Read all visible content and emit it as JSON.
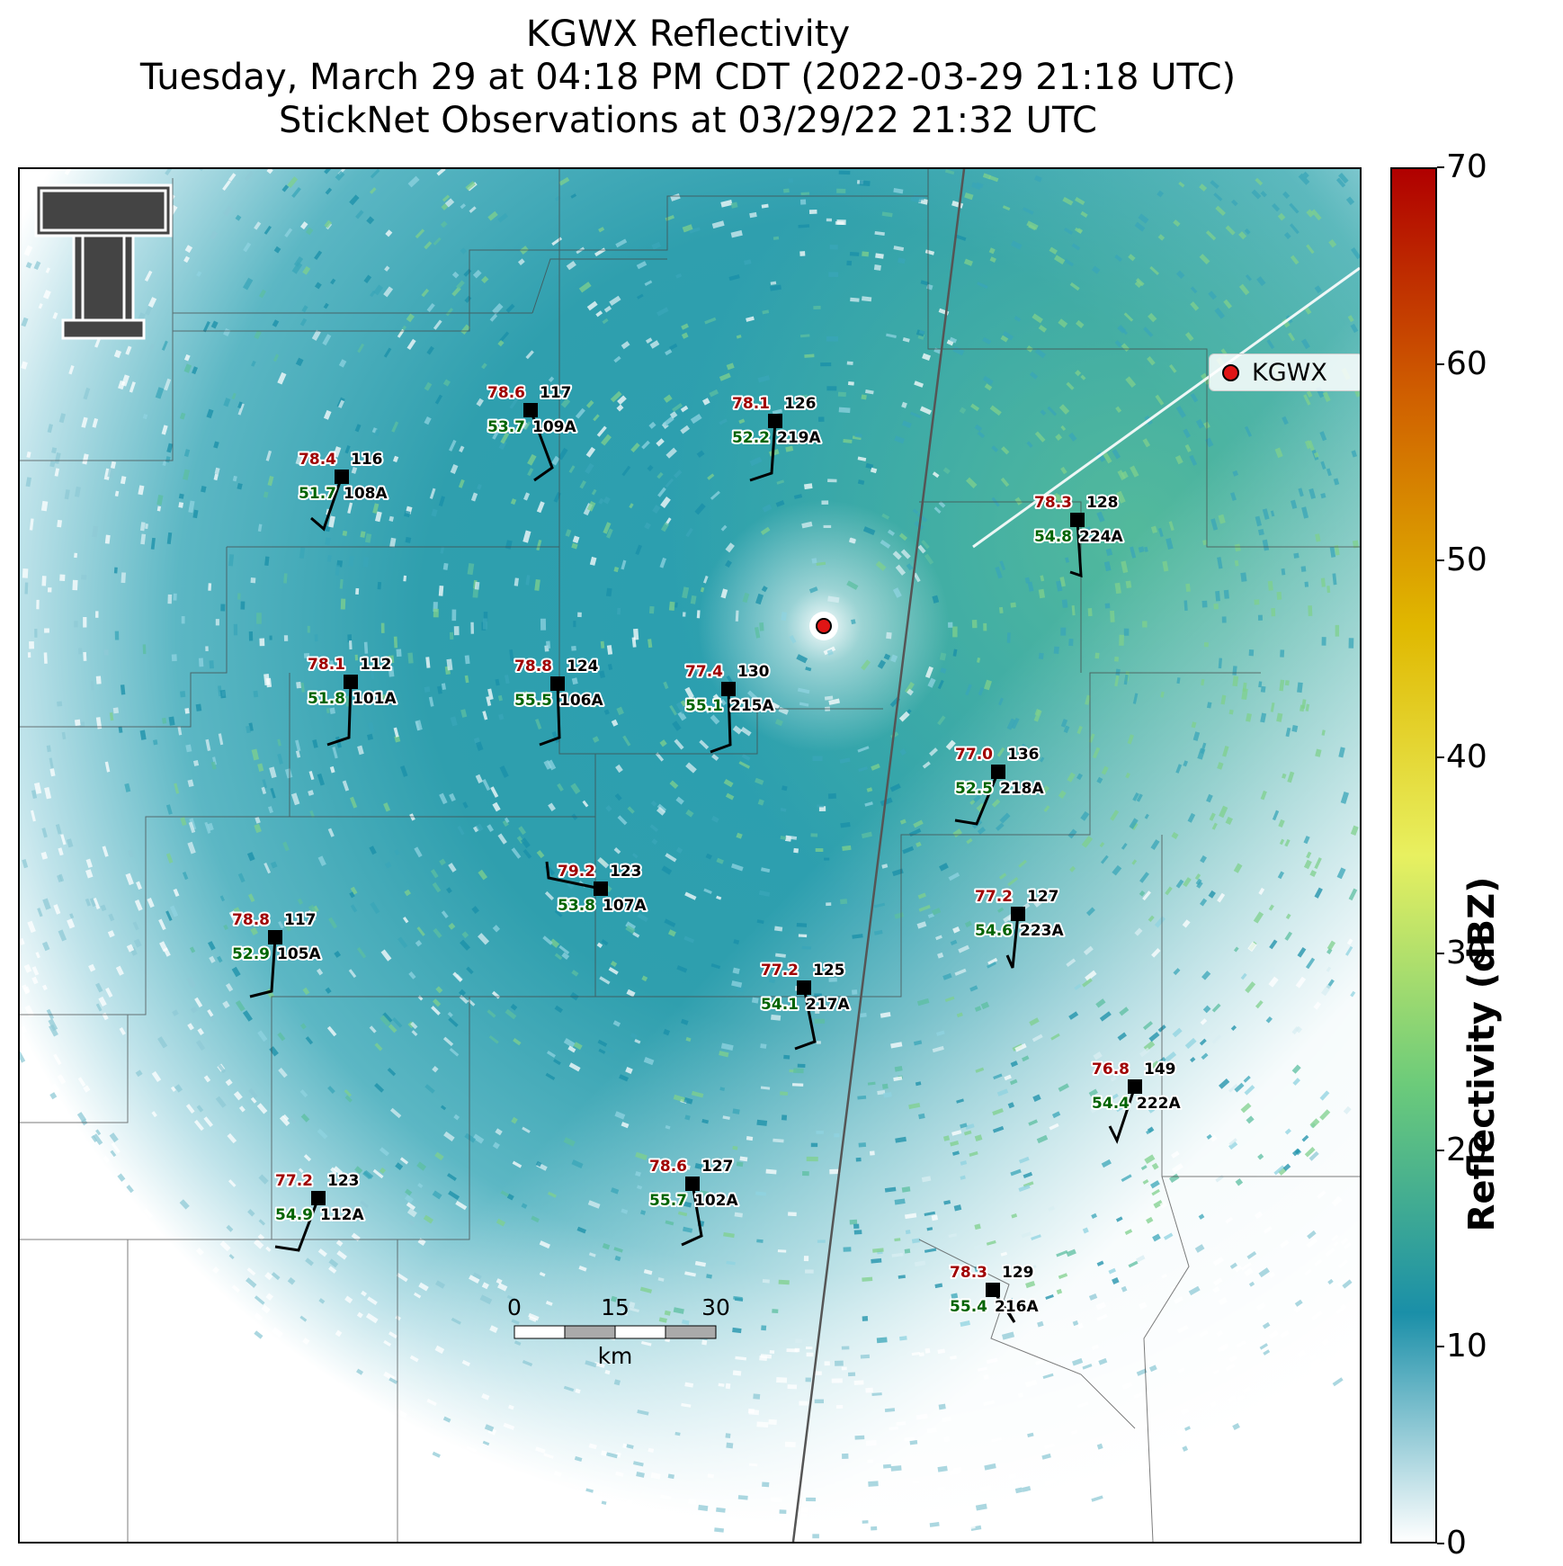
{
  "title": {
    "line1": "KGWX Reflectivity",
    "line2": "Tuesday, March 29 at 04:18 PM CDT (2022-03-29 21:18 UTC)",
    "line3": "StickNet Observations at 03/29/22 21:32 UTC"
  },
  "legend": {
    "label": "KGWX",
    "marker_color": "#e01515"
  },
  "colorbar": {
    "label": "Reflectivity (dBZ)",
    "ticks": [
      "0",
      "10",
      "20",
      "30",
      "40",
      "50",
      "60",
      "70"
    ],
    "stops": [
      "#ffffff",
      "#1a8fa8",
      "#6ccb7a",
      "#e8f060",
      "#e0b800",
      "#d06000",
      "#b00000"
    ]
  },
  "scalebar": {
    "labels": [
      "0",
      "15",
      "30"
    ],
    "unit": "km"
  },
  "stations": [
    {
      "id": "109A",
      "temp": "78.6",
      "dew": "53.7",
      "val": "117"
    },
    {
      "id": "219A",
      "temp": "78.1",
      "dew": "52.2",
      "val": "126"
    },
    {
      "id": "108A",
      "temp": "78.4",
      "dew": "51.7",
      "val": "116"
    },
    {
      "id": "224A",
      "temp": "78.3",
      "dew": "54.8",
      "val": "128"
    },
    {
      "id": "101A",
      "temp": "78.1",
      "dew": "51.8",
      "val": "112"
    },
    {
      "id": "106A",
      "temp": "78.8",
      "dew": "55.5",
      "val": "124"
    },
    {
      "id": "215A",
      "temp": "77.4",
      "dew": "55.1",
      "val": "130"
    },
    {
      "id": "218A",
      "temp": "77.0",
      "dew": "52.5",
      "val": "136"
    },
    {
      "id": "107A",
      "temp": "79.2",
      "dew": "53.8",
      "val": "123"
    },
    {
      "id": "223A",
      "temp": "77.2",
      "dew": "54.6",
      "val": "127"
    },
    {
      "id": "105A",
      "temp": "78.8",
      "dew": "52.9",
      "val": "117"
    },
    {
      "id": "217A",
      "temp": "77.2",
      "dew": "54.1",
      "val": "125"
    },
    {
      "id": "222A",
      "temp": "76.8",
      "dew": "54.4",
      "val": "149"
    },
    {
      "id": "112A",
      "temp": "77.2",
      "dew": "54.9",
      "val": "123"
    },
    {
      "id": "102A",
      "temp": "78.6",
      "dew": "55.7",
      "val": "127"
    },
    {
      "id": "216A",
      "temp": "78.3",
      "dew": "55.4",
      "val": "129"
    }
  ]
}
